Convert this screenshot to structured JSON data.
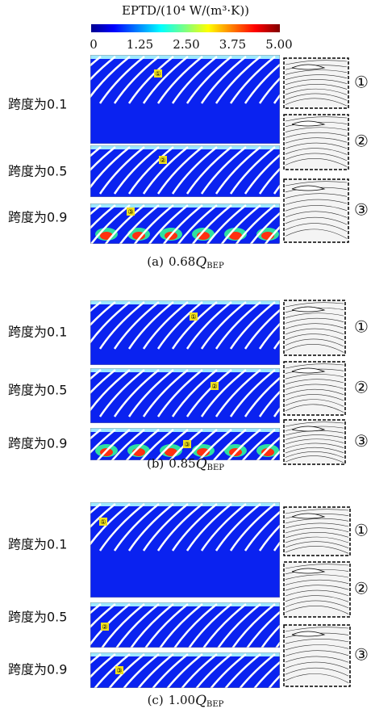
{
  "colorbar": {
    "title": "EPTD/(10⁴ W/(m³·K))",
    "ticks": [
      "0",
      "1.25",
      "2.50",
      "3.75",
      "5.00"
    ]
  },
  "panels": [
    {
      "letter": "(a)",
      "flow": "0.68",
      "symbol": "Q",
      "subscript": "BEP",
      "rows": [
        "跨度为0.1",
        "跨度为0.5",
        "跨度为0.9"
      ],
      "markers": [
        "①",
        "②",
        "③"
      ],
      "insets": [
        "①",
        "②",
        "③"
      ]
    },
    {
      "letter": "(b)",
      "flow": "0.85",
      "symbol": "Q",
      "subscript": "BEP",
      "rows": [
        "跨度为0.1",
        "跨度为0.5",
        "跨度为0.9"
      ],
      "markers": [
        "①",
        "②",
        "③"
      ],
      "insets": [
        "①",
        "②",
        "③"
      ]
    },
    {
      "letter": "(c)",
      "flow": "1.00",
      "symbol": "Q",
      "subscript": "BEP",
      "rows": [
        "跨度为0.1",
        "跨度为0.5",
        "跨度为0.9"
      ],
      "markers": [
        "①",
        "②",
        "③"
      ],
      "insets": [
        "①",
        "②",
        "③"
      ]
    }
  ]
}
